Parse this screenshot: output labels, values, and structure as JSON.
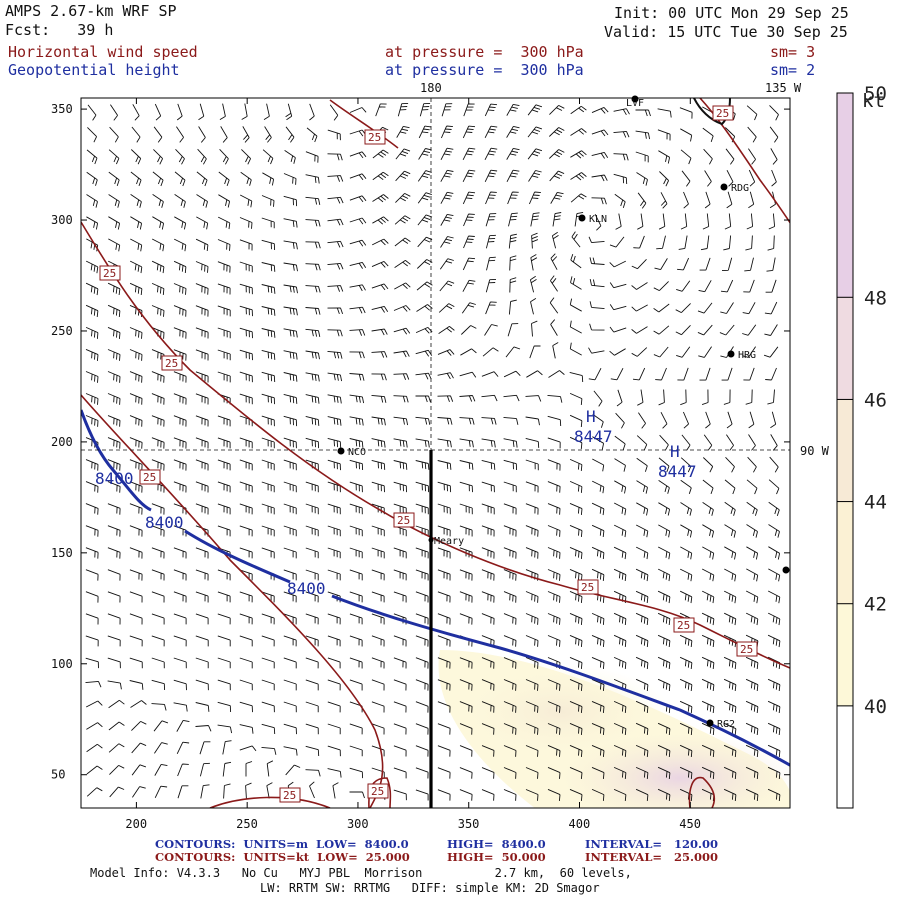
{
  "header": {
    "model": "AMPS 2.67-km WRF SP",
    "fcst": "Fcst:   39 h",
    "init": "Init: 00 UTC Mon 29 Sep 25",
    "valid": "Valid: 15 UTC Tue 30 Sep 25",
    "field1": "Horizontal wind speed",
    "field2": "Geopotential height",
    "level1": "at pressure =  300 hPa",
    "level2": "at pressure =  300 hPa",
    "sm1": "sm= 3",
    "sm2": "sm= 2"
  },
  "map_labels": {
    "top_lon": "180",
    "top_right_lon": "135 W",
    "right_lon": "90 W",
    "stations": [
      "LVF",
      "RDG",
      "KLN",
      "HRG",
      "NCO",
      "Meary",
      "RG2"
    ],
    "highs": [
      {
        "symbol": "H",
        "value": "8447"
      },
      {
        "symbol": "H",
        "value": "8447"
      }
    ],
    "height_contour_labels": [
      "8400",
      "8400",
      "8400"
    ],
    "speed_contour_label": "25"
  },
  "footer": {
    "line1_left": "CONTOURS:  UNITS=m  LOW=  8400.0",
    "line1_mid": "HIGH=  8400.0",
    "line1_right": "INTERVAL=   120.00",
    "line2_left": "CONTOURS:  UNITS=kt  LOW=  25.000",
    "line2_mid": "HIGH=  50.000",
    "line2_right": "INTERVAL=   25.000",
    "model_info": "Model Info: V4.3.3   No Cu   MYJ PBL  Morrison          2.7 km,  60 levels,",
    "physics": "LW: RRTM SW: RRTMG   DIFF: simple KM: 2D Smagor"
  },
  "chart_data": {
    "type": "contour",
    "title": "Horizontal wind speed (kt) shaded, geopotential height (m) contoured at 300 hPa",
    "x_ticks": [
      200,
      250,
      300,
      350,
      400,
      450
    ],
    "y_ticks": [
      50,
      100,
      150,
      200,
      250,
      300,
      350
    ],
    "xlim": [
      175,
      495
    ],
    "ylim": [
      35,
      355
    ],
    "colorbar": {
      "unit": "kt",
      "levels": [
        40,
        42,
        44,
        46,
        48,
        50
      ],
      "colors": [
        "#ffffff",
        "#fdf8d8",
        "#fbf1d4",
        "#f7ead6",
        "#efdbe1",
        "#e7cfe6"
      ]
    },
    "height_contour_m": 8400,
    "speed_contour_kt": 25,
    "highs_m": [
      8447,
      8447
    ],
    "cross_section_x": 334,
    "colors": {
      "frame": "#000000",
      "speed_contour": "#8b1a1a",
      "height_contour": "#1f2fa0"
    }
  }
}
